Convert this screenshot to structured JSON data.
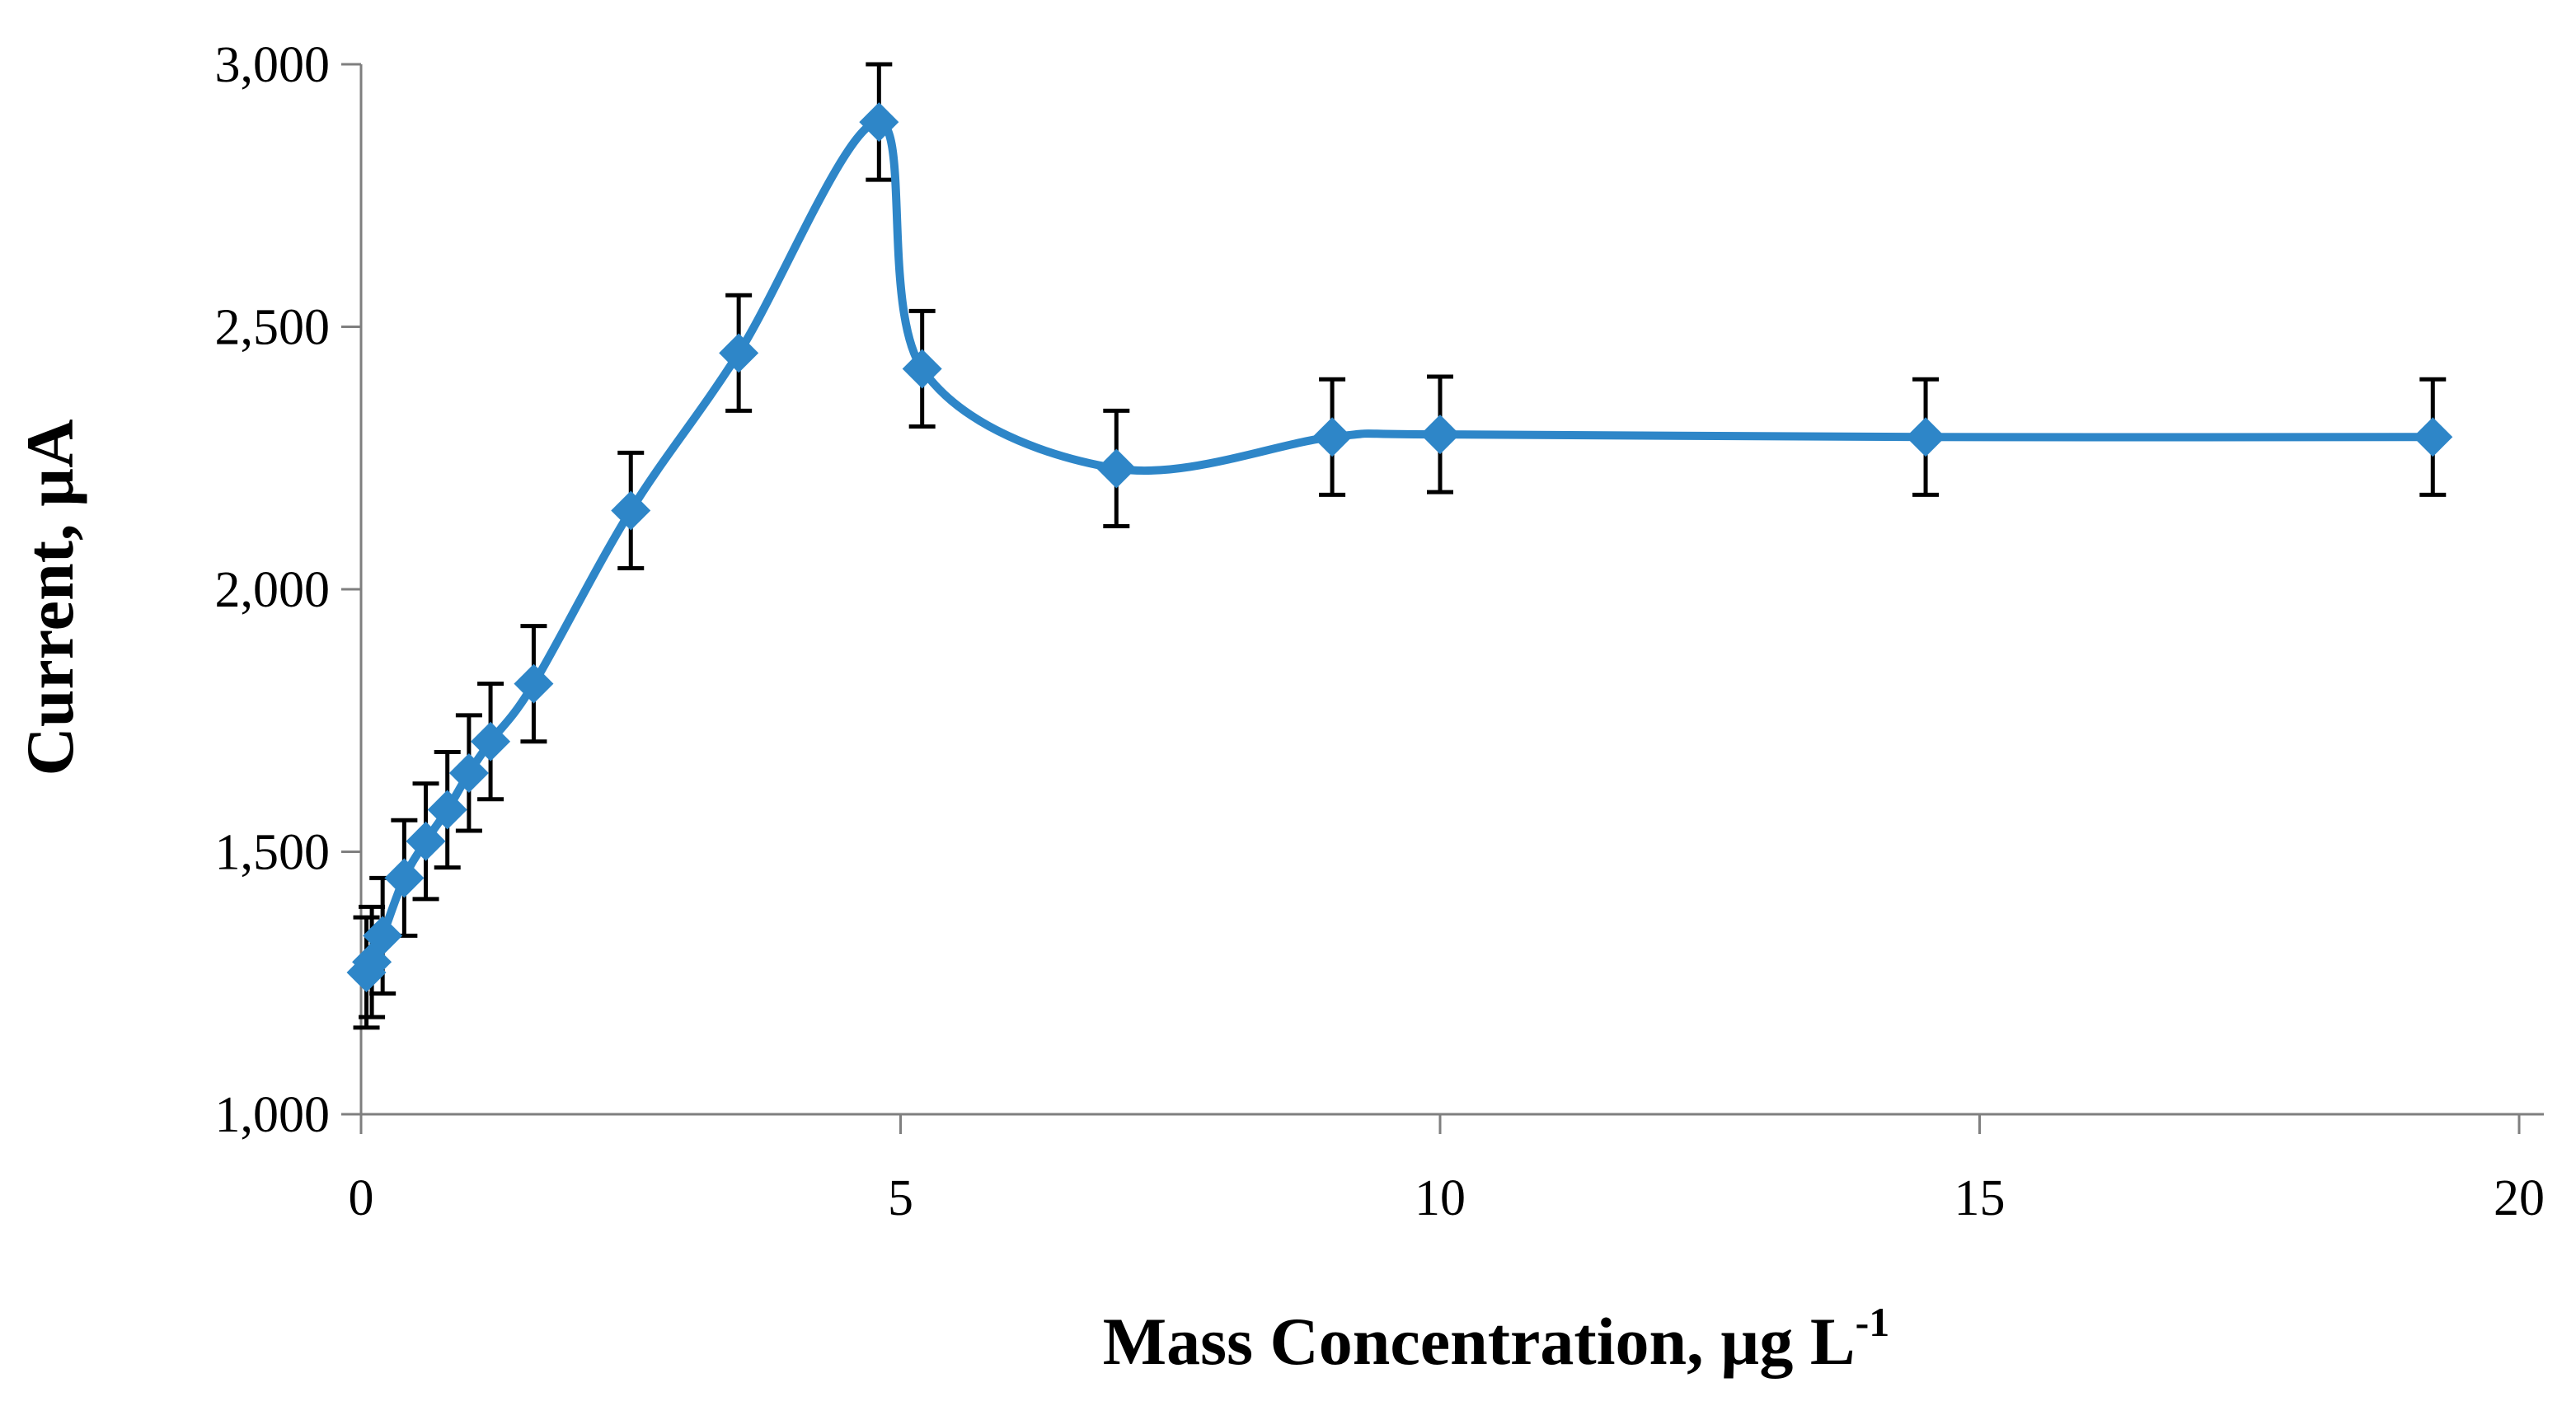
{
  "chart_data": {
    "type": "line",
    "title": "",
    "xlabel": "Mass Concentration, µg L",
    "xlabel_superscript": "-1",
    "ylabel": "Current, µA",
    "xlim": [
      0,
      20
    ],
    "ylim": [
      1000,
      3000
    ],
    "x_ticks": [
      0,
      5,
      10,
      15,
      20
    ],
    "x_tick_labels": [
      "0",
      "5",
      "10",
      "15",
      "20"
    ],
    "y_ticks": [
      1000,
      1500,
      2000,
      2500,
      3000
    ],
    "y_tick_labels": [
      "1,000",
      "1,500",
      "2,000",
      "2,500",
      "3,000"
    ],
    "grid": false,
    "smooth": true,
    "marker": "diamond",
    "series": [
      {
        "name": "Current",
        "color": "#2e86c8",
        "x": [
          0.05,
          0.1,
          0.2,
          0.4,
          0.6,
          0.8,
          1.0,
          1.2,
          1.6,
          2.5,
          3.5,
          4.8,
          5.2,
          7.0,
          9.0,
          10.0,
          14.5,
          19.2
        ],
        "y": [
          1270,
          1290,
          1340,
          1450,
          1520,
          1580,
          1650,
          1710,
          1820,
          2150,
          2450,
          2890,
          2420,
          2230,
          2290,
          2295,
          2290,
          2290
        ],
        "error": [
          105,
          105,
          110,
          110,
          110,
          110,
          110,
          110,
          110,
          110,
          110,
          110,
          110,
          110,
          110,
          110,
          110,
          110
        ]
      }
    ]
  }
}
